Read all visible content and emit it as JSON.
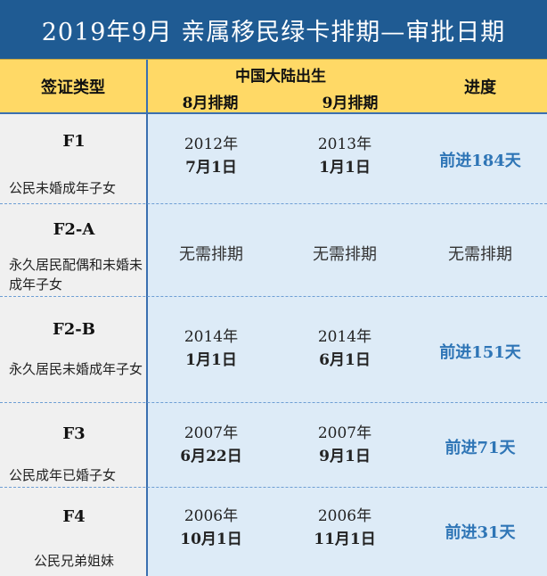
{
  "title": "2019年9月  亲属移民绿卡排期—审批日期",
  "header": {
    "col_category": "签证类型",
    "group_label": "中国大陆出生",
    "col_aug": "8月排期",
    "col_sep": "9月排期",
    "col_progress": "进度"
  },
  "rows": [
    {
      "code": "F1",
      "desc": "公民未婚成年子女",
      "aug_year": "2012年",
      "aug_md": "7月1日",
      "sep_year": "2013年",
      "sep_md": "1月1日",
      "progress": "前进184天"
    },
    {
      "code": "F2-A",
      "desc": "永久居民配偶和未婚未成年子女",
      "aug_text": "无需排期",
      "sep_text": "无需排期",
      "progress_text": "无需排期"
    },
    {
      "code": "F2-B",
      "desc": "永久居民未婚成年子女",
      "aug_year": "2014年",
      "aug_md": "1月1日",
      "sep_year": "2014年",
      "sep_md": "6月1日",
      "progress": "前进151天"
    },
    {
      "code": "F3",
      "desc": "公民成年已婚子女",
      "aug_year": "2007年",
      "aug_md": "6月22日",
      "sep_year": "2007年",
      "sep_md": "9月1日",
      "progress": "前进71天"
    },
    {
      "code": "F4",
      "desc": "公民兄弟姐妹",
      "aug_year": "2006年",
      "aug_md": "10月1日",
      "sep_year": "2006年",
      "sep_md": "11月1日",
      "progress": "前进31天"
    }
  ]
}
